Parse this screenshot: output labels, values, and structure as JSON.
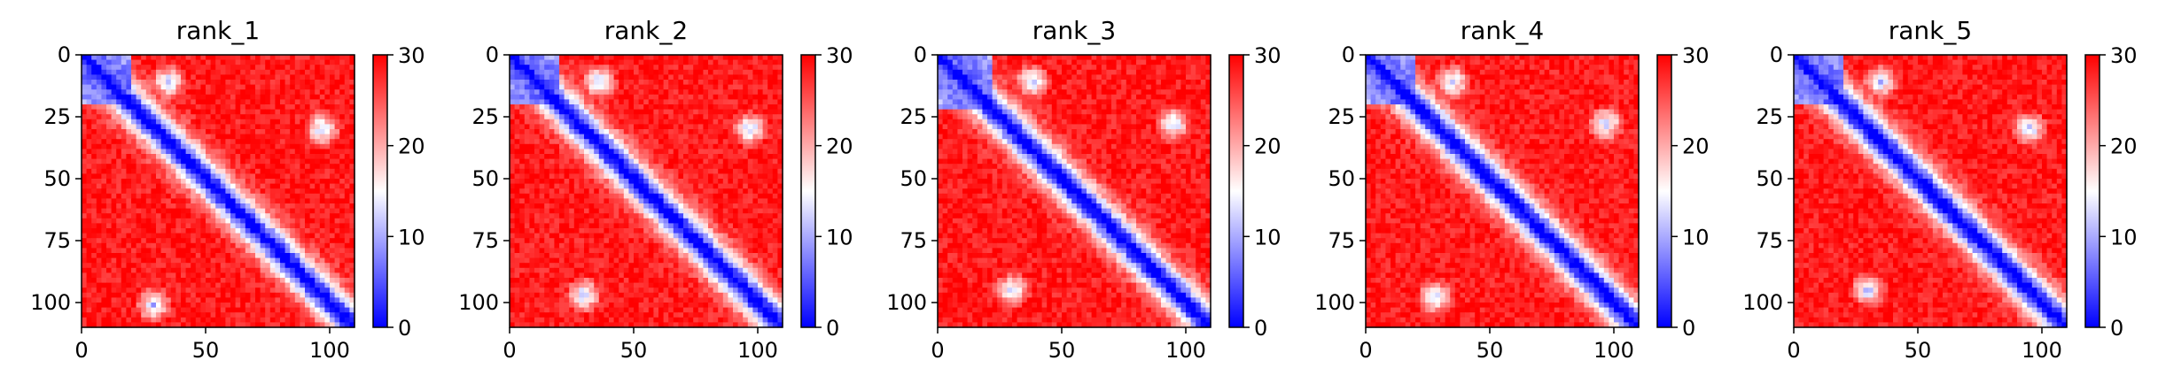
{
  "chart_data": [
    {
      "type": "heatmap",
      "title": "rank_1",
      "n": 110,
      "xticks": [
        "0",
        "50",
        "100"
      ],
      "yticks": [
        "0",
        "25",
        "50",
        "75",
        "100"
      ],
      "xtick_values": [
        0,
        50,
        100
      ],
      "ytick_values": [
        0,
        25,
        50,
        75,
        100
      ],
      "colorbar": {
        "range": [
          0,
          30
        ],
        "ticks": [
          "0",
          "10",
          "20",
          "30"
        ],
        "tick_values": [
          0,
          10,
          20,
          30
        ],
        "colormap": [
          "#0000ff",
          "#ffffff",
          "#ff0000"
        ]
      },
      "features": {
        "diagonal_band": true,
        "n_terminal_block": [
          0,
          20
        ],
        "light_spots": [
          [
            35,
            11
          ],
          [
            97,
            30
          ],
          [
            29,
            101
          ]
        ]
      }
    },
    {
      "type": "heatmap",
      "title": "rank_2",
      "n": 110,
      "xticks": [
        "0",
        "50",
        "100"
      ],
      "yticks": [
        "0",
        "25",
        "50",
        "75",
        "100"
      ],
      "xtick_values": [
        0,
        50,
        100
      ],
      "ytick_values": [
        0,
        25,
        50,
        75,
        100
      ],
      "colorbar": {
        "range": [
          0,
          30
        ],
        "ticks": [
          "0",
          "10",
          "20",
          "30"
        ],
        "tick_values": [
          0,
          10,
          20,
          30
        ],
        "colormap": [
          "#0000ff",
          "#ffffff",
          "#ff0000"
        ]
      },
      "features": {
        "diagonal_band": true,
        "n_terminal_block": [
          0,
          20
        ],
        "light_spots": [
          [
            36,
            11
          ],
          [
            97,
            30
          ],
          [
            30,
            97
          ]
        ]
      }
    },
    {
      "type": "heatmap",
      "title": "rank_3",
      "n": 110,
      "xticks": [
        "0",
        "50",
        "100"
      ],
      "yticks": [
        "0",
        "25",
        "50",
        "75",
        "100"
      ],
      "xtick_values": [
        0,
        50,
        100
      ],
      "ytick_values": [
        0,
        25,
        50,
        75,
        100
      ],
      "colorbar": {
        "range": [
          0,
          30
        ],
        "ticks": [
          "0",
          "10",
          "20",
          "30"
        ],
        "tick_values": [
          0,
          10,
          20,
          30
        ],
        "colormap": [
          "#0000ff",
          "#ffffff",
          "#ff0000"
        ]
      },
      "features": {
        "diagonal_band": true,
        "n_terminal_block": [
          0,
          22
        ],
        "light_spots": [
          [
            38,
            11
          ],
          [
            95,
            28
          ],
          [
            30,
            95
          ]
        ]
      }
    },
    {
      "type": "heatmap",
      "title": "rank_4",
      "n": 110,
      "xticks": [
        "0",
        "50",
        "100"
      ],
      "yticks": [
        "0",
        "25",
        "50",
        "75",
        "100"
      ],
      "xtick_values": [
        0,
        50,
        100
      ],
      "ytick_values": [
        0,
        25,
        50,
        75,
        100
      ],
      "colorbar": {
        "range": [
          0,
          30
        ],
        "ticks": [
          "0",
          "10",
          "20",
          "30"
        ],
        "tick_values": [
          0,
          10,
          20,
          30
        ],
        "colormap": [
          "#0000ff",
          "#ffffff",
          "#ff0000"
        ]
      },
      "features": {
        "diagonal_band": true,
        "n_terminal_block": [
          0,
          20
        ],
        "light_spots": [
          [
            35,
            11
          ],
          [
            97,
            28
          ],
          [
            28,
            98
          ]
        ]
      }
    },
    {
      "type": "heatmap",
      "title": "rank_5",
      "n": 110,
      "xticks": [
        "0",
        "50",
        "100"
      ],
      "yticks": [
        "0",
        "25",
        "50",
        "75",
        "100"
      ],
      "xtick_values": [
        0,
        50,
        100
      ],
      "ytick_values": [
        0,
        25,
        50,
        75,
        100
      ],
      "colorbar": {
        "range": [
          0,
          30
        ],
        "ticks": [
          "0",
          "10",
          "20",
          "30"
        ],
        "tick_values": [
          0,
          10,
          20,
          30
        ],
        "colormap": [
          "#0000ff",
          "#ffffff",
          "#ff0000"
        ]
      },
      "features": {
        "diagonal_band": true,
        "n_terminal_block": [
          0,
          20
        ],
        "light_spots": [
          [
            35,
            11
          ],
          [
            95,
            30
          ],
          [
            30,
            95
          ]
        ]
      }
    }
  ]
}
